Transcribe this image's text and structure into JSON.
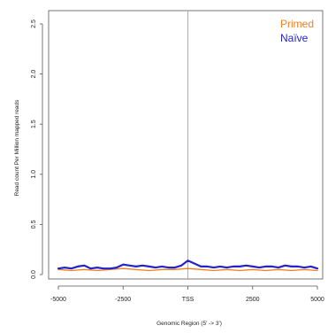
{
  "chart_data": {
    "type": "line",
    "title": "",
    "xlabel": "Genomic Region (5' -> 3')",
    "ylabel": "Read count Per Million mapped reads",
    "xlim": [
      -5000,
      5000
    ],
    "ylim": [
      0,
      2.5
    ],
    "x_ticks": [
      -5000,
      -2500,
      0,
      2500,
      5000
    ],
    "x_tick_labels": [
      "-5000",
      "-2500",
      "TSS",
      "2500",
      "5000"
    ],
    "y_ticks": [
      0,
      0.5,
      1.0,
      1.5,
      2.0,
      2.5
    ],
    "y_tick_labels": [
      "0.0",
      "0.5",
      "1.0",
      "1.5",
      "2.0",
      "2.5"
    ],
    "grid": false,
    "reference_line_x": 0,
    "legend_position": "top-right",
    "series": [
      {
        "name": "Primed",
        "color": "#F07F22",
        "x": [
          -5000,
          -4500,
          -4000,
          -3500,
          -3000,
          -2500,
          -2000,
          -1500,
          -1000,
          -500,
          0,
          500,
          1000,
          1500,
          2000,
          2500,
          3000,
          3500,
          4000,
          4500,
          5000
        ],
        "y": [
          0.05,
          0.04,
          0.05,
          0.04,
          0.05,
          0.06,
          0.05,
          0.04,
          0.05,
          0.05,
          0.06,
          0.05,
          0.04,
          0.05,
          0.04,
          0.05,
          0.04,
          0.05,
          0.04,
          0.05,
          0.04
        ]
      },
      {
        "name": "Naïve",
        "color": "#2323C8",
        "x": [
          -5000,
          -4750,
          -4500,
          -4250,
          -4000,
          -3750,
          -3500,
          -3250,
          -3000,
          -2750,
          -2500,
          -2250,
          -2000,
          -1750,
          -1500,
          -1250,
          -1000,
          -750,
          -500,
          -250,
          0,
          250,
          500,
          750,
          1000,
          1250,
          1500,
          1750,
          2000,
          2250,
          2500,
          2750,
          3000,
          3250,
          3500,
          3750,
          4000,
          4250,
          4500,
          4750,
          5000
        ],
        "y": [
          0.06,
          0.07,
          0.06,
          0.08,
          0.09,
          0.06,
          0.07,
          0.06,
          0.06,
          0.07,
          0.1,
          0.09,
          0.08,
          0.09,
          0.08,
          0.07,
          0.08,
          0.07,
          0.07,
          0.09,
          0.14,
          0.11,
          0.08,
          0.08,
          0.07,
          0.08,
          0.07,
          0.08,
          0.08,
          0.09,
          0.08,
          0.07,
          0.08,
          0.08,
          0.07,
          0.09,
          0.08,
          0.08,
          0.07,
          0.08,
          0.06
        ]
      }
    ]
  }
}
